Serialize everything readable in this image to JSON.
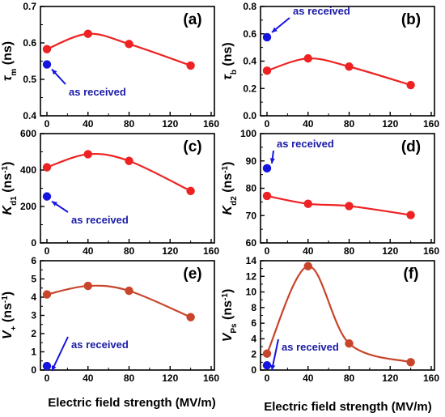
{
  "chart_data": [
    {
      "type": "scatter",
      "panel_label": "(a)",
      "ylabel": "τm (ns)",
      "xlim": [
        0,
        160
      ],
      "ylim": [
        0.4,
        0.7
      ],
      "xticks": [
        "0",
        "40",
        "80",
        "120",
        "160"
      ],
      "yticks": [
        "0.4",
        "0.5",
        "0.6",
        "0.7"
      ],
      "series": [
        {
          "x": [
            0,
            40,
            80,
            140
          ],
          "y": [
            0.583,
            0.625,
            0.597,
            0.538
          ],
          "color": "#ee2222",
          "fit_line": true
        },
        {
          "x": [
            0
          ],
          "y": [
            0.541
          ],
          "color": "#1515e0"
        }
      ],
      "annotation": {
        "text": "as received",
        "color": "#1a1aa8",
        "arrow_target": [
          0,
          0.541
        ]
      }
    },
    {
      "type": "scatter",
      "panel_label": "(b)",
      "ylabel": "τb (ns)",
      "xlim": [
        0,
        160
      ],
      "ylim": [
        0.0,
        0.8
      ],
      "xticks": [
        "0",
        "40",
        "80",
        "120",
        "160"
      ],
      "yticks": [
        "0.0",
        "0.2",
        "0.4",
        "0.6",
        "0.8"
      ],
      "series": [
        {
          "x": [
            0,
            40,
            80,
            140
          ],
          "y": [
            0.33,
            0.42,
            0.36,
            0.225
          ],
          "color": "#ee2222",
          "fit_line": true
        },
        {
          "x": [
            0
          ],
          "y": [
            0.575
          ],
          "color": "#1515e0"
        }
      ],
      "annotation": {
        "text": "as received",
        "color": "#1a1aa8",
        "arrow_target": [
          0,
          0.575
        ]
      }
    },
    {
      "type": "scatter",
      "panel_label": "(c)",
      "ylabel": "Kd1 (ns-1)",
      "xlim": [
        0,
        160
      ],
      "ylim": [
        0,
        600
      ],
      "xticks": [
        "0",
        "40",
        "80",
        "120",
        "160"
      ],
      "yticks": [
        "0",
        "200",
        "400",
        "600"
      ],
      "series": [
        {
          "x": [
            0,
            40,
            80,
            140
          ],
          "y": [
            415,
            487,
            450,
            285
          ],
          "color": "#ee2222",
          "fit_line": true
        },
        {
          "x": [
            0
          ],
          "y": [
            255
          ],
          "color": "#1515e0"
        }
      ],
      "annotation": {
        "text": "as received",
        "color": "#1a1aa8",
        "arrow_target": [
          0,
          255
        ]
      }
    },
    {
      "type": "scatter",
      "panel_label": "(d)",
      "ylabel": "Kd2 (ns-1)",
      "xlim": [
        0,
        160
      ],
      "ylim": [
        60,
        100
      ],
      "xticks": [
        "0",
        "40",
        "80",
        "120",
        "160"
      ],
      "yticks": [
        "60",
        "70",
        "80",
        "90",
        "100"
      ],
      "series": [
        {
          "x": [
            0,
            40,
            80,
            140
          ],
          "y": [
            77.2,
            74.3,
            73.5,
            70.2
          ],
          "color": "#ee2222",
          "fit_line": true
        },
        {
          "x": [
            0
          ],
          "y": [
            87.3
          ],
          "color": "#1515e0"
        }
      ],
      "annotation": {
        "text": "as received",
        "color": "#1a1aa8",
        "arrow_target": [
          0,
          87.3
        ]
      }
    },
    {
      "type": "scatter",
      "panel_label": "(e)",
      "ylabel": "V+ (ns-1)",
      "xlim": [
        0,
        160
      ],
      "ylim": [
        0,
        6
      ],
      "xticks": [
        "0",
        "40",
        "80",
        "120",
        "160"
      ],
      "yticks": [
        "0",
        "1",
        "2",
        "3",
        "4",
        "5",
        "6"
      ],
      "series": [
        {
          "x": [
            0,
            40,
            80,
            140
          ],
          "y": [
            4.15,
            4.62,
            4.35,
            2.9
          ],
          "color": "#c8442a",
          "fit_line": true
        },
        {
          "x": [
            0
          ],
          "y": [
            0.22
          ],
          "color": "#1515e0"
        }
      ],
      "annotation": {
        "text": "as received",
        "color": "#1a1aa8",
        "arrow_target": [
          0,
          0.22
        ]
      }
    },
    {
      "type": "scatter",
      "panel_label": "(f)",
      "ylabel": "VPs (ns-1)",
      "xlim": [
        0,
        160
      ],
      "ylim": [
        0,
        14
      ],
      "xticks": [
        "0",
        "40",
        "80",
        "120",
        "160"
      ],
      "yticks": [
        "0",
        "2",
        "4",
        "6",
        "8",
        "10",
        "12",
        "14"
      ],
      "series": [
        {
          "x": [
            0,
            40,
            80,
            140
          ],
          "y": [
            2.1,
            13.3,
            3.4,
            1.0
          ],
          "color": "#c8442a",
          "fit_line": true
        },
        {
          "x": [
            0
          ],
          "y": [
            0.6
          ],
          "color": "#1515e0"
        }
      ],
      "annotation": {
        "text": "as received",
        "color": "#1a1aa8",
        "arrow_target": [
          0,
          0.6
        ]
      }
    }
  ],
  "xlabel_left": "Electric field strength (MV/m)",
  "xlabel_right": "Electric field strength (MV/m)",
  "ylabels": {
    "a": {
      "main": "τ",
      "sub": "m",
      "unit": " (ns)"
    },
    "b": {
      "main": "τ",
      "sub": "b",
      "unit": " (ns)"
    },
    "c": {
      "main": "K",
      "sub": "d1",
      "unit": " (ns",
      "sup": "-1",
      "close": ")"
    },
    "d": {
      "main": "K",
      "sub": "d2",
      "unit": " (ns",
      "sup": "-1",
      "close": ")"
    },
    "e": {
      "main": "V",
      "sub": "+",
      "unit": " (ns",
      "sup": "-1",
      "close": ")"
    },
    "f": {
      "main": "V",
      "sub": "Ps",
      "unit": " (ns",
      "sup": "-1",
      "close": ")"
    }
  }
}
